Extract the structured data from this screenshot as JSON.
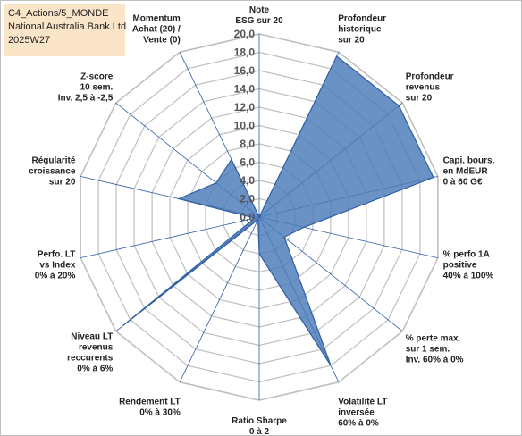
{
  "title_box": {
    "line1": "C4_Actions/5_MONDE",
    "line2": "National Australia Bank Ltd",
    "line3": "2025W27"
  },
  "colors": {
    "fill": "#4a7ab8",
    "stroke": "#2f5ea3",
    "grid": "#bfbfbf",
    "spoke": "#2f5ea3",
    "title_bg": "#fbe5c8"
  },
  "chart_data": {
    "type": "radar",
    "scale": {
      "min": 0,
      "max": 20,
      "step": 2
    },
    "tick_labels": [
      "0,0",
      "2,0",
      "4,0",
      "6,0",
      "8,0",
      "10,0",
      "12,0",
      "14,0",
      "16,0",
      "18,0",
      "20,0"
    ],
    "axes": [
      {
        "label": [
          "Note",
          "ESG sur 20"
        ],
        "value": 0
      },
      {
        "label": [
          "Profondeur",
          "historique",
          "sur 20"
        ],
        "value": 19.5
      },
      {
        "label": [
          "Profondeur",
          "revenus",
          "sur 20"
        ],
        "value": 19.5
      },
      {
        "label": [
          "Capi. bours.",
          "en MdEUR",
          "0 à 60 G€"
        ],
        "value": 19.5
      },
      {
        "label": [
          "% perfo 1A",
          "positive",
          "40% à 100%"
        ],
        "value": 5.0
      },
      {
        "label": [
          "% perte max.",
          "sur 1 sem.",
          "Inv. 60% à 0%"
        ],
        "value": 3.5
      },
      {
        "label": [
          "Volatilité LT",
          "inversée",
          "60% à 0%"
        ],
        "value": 18.0
      },
      {
        "label": [
          "Ratio Sharpe",
          "0 à 2"
        ],
        "value": 4.0
      },
      {
        "label": [
          "Rendement LT",
          "0% à 30%"
        ],
        "value": 0.3
      },
      {
        "label": [
          "Niveau LT",
          "revenus",
          "reccurents",
          "0% à 6%"
        ],
        "value": 19.0
      },
      {
        "label": [
          "Perfo. LT",
          "vs Index",
          "0% à 20%"
        ],
        "value": 0.5
      },
      {
        "label": [
          "Régularité",
          "croissance",
          "sur 20"
        ],
        "value": 9.0
      },
      {
        "label": [
          "Z-score",
          "10 sem.",
          "Inv. 2,5 à -2,5"
        ],
        "value": 6.0
      },
      {
        "label": [
          "Momentum",
          "Achat (20) /",
          "Vente (0)"
        ],
        "value": 7.0
      }
    ]
  }
}
